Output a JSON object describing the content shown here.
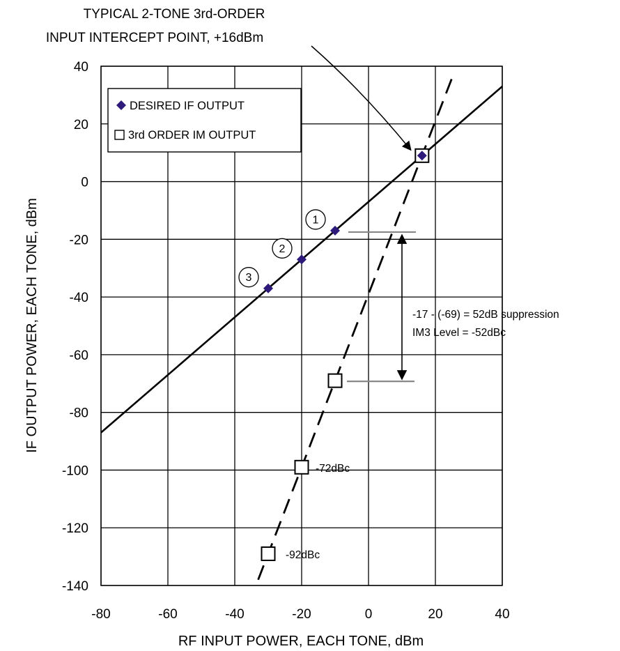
{
  "chart_data": {
    "type": "line",
    "annotation_title": [
      "TYPICAL 2-TONE 3rd-ORDER",
      "INPUT INTERCEPT POINT, +16dBm"
    ],
    "xlabel": "RF INPUT POWER, EACH TONE, dBm",
    "ylabel": "IF OUTPUT POWER, EACH TONE, dBm",
    "xlim": [
      -80,
      40
    ],
    "ylim": [
      -140,
      40
    ],
    "xticks": [
      -80,
      -60,
      -40,
      -20,
      0,
      20,
      40
    ],
    "yticks": [
      40,
      20,
      0,
      -20,
      -40,
      -60,
      -80,
      -100,
      -120,
      -140
    ],
    "xtick_labels": [
      "-80",
      "-60",
      "-40",
      "-20",
      "0",
      "20",
      "40"
    ],
    "ytick_labels": [
      "40",
      "20",
      "0",
      "-20",
      "-40",
      "-60",
      "-80",
      "-100",
      "-120",
      "-140"
    ],
    "grid": true,
    "legend_position": "top-left",
    "series": [
      {
        "name": "DESIRED IF OUTPUT",
        "marker": "diamond",
        "color": "#2e1a7a",
        "line_style": "solid",
        "line": [
          [
            -80,
            -87
          ],
          [
            40,
            33
          ]
        ],
        "points": [
          [
            -30,
            -37
          ],
          [
            -20,
            -27
          ],
          [
            -10,
            -17
          ],
          [
            16,
            9
          ]
        ]
      },
      {
        "name": "3rd ORDER IM OUTPUT",
        "marker": "open-square",
        "color": "#000000",
        "line_style": "dashed",
        "line": [
          [
            -33,
            -138
          ],
          [
            25,
            36
          ]
        ],
        "points": [
          [
            -30,
            -129
          ],
          [
            -20,
            -99
          ],
          [
            -10,
            -69
          ],
          [
            16,
            9
          ]
        ]
      }
    ],
    "point_labels": [
      {
        "text": "1",
        "x": -10,
        "y": -17
      },
      {
        "text": "2",
        "x": -20,
        "y": -27
      },
      {
        "text": "3",
        "x": -30,
        "y": -37
      }
    ],
    "annotations": {
      "suppression_line1": "-17 - (-69)  = 52dB suppression",
      "suppression_line2": "IM3 Level = -52dBc",
      "label_72": "-72dBc",
      "label_92": "-92dBc"
    }
  }
}
